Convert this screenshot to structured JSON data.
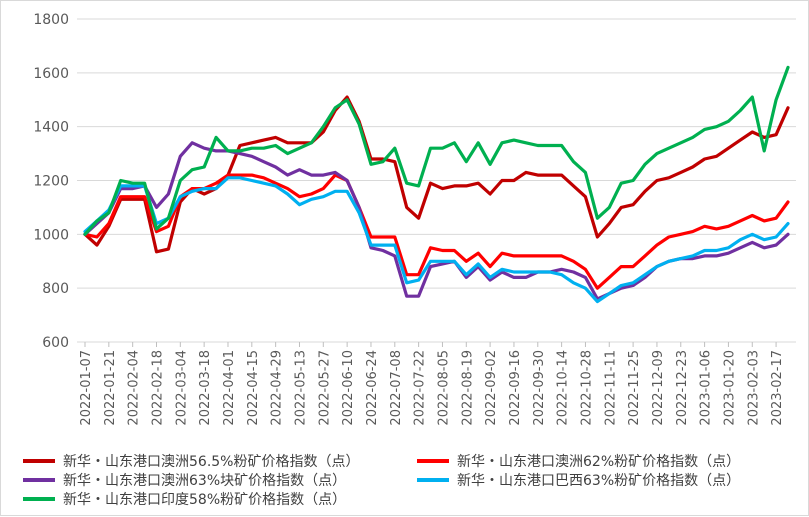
{
  "chart_data": {
    "type": "line",
    "title": "",
    "xlabel": "",
    "ylabel": "",
    "ylim": [
      600,
      1800
    ],
    "yticks": [
      600,
      800,
      1000,
      1200,
      1400,
      1600,
      1800
    ],
    "grid": "horizontal",
    "legend_position": "bottom",
    "x_tick_labels": [
      "2022-01-07",
      "2022-01-21",
      "2022-02-04",
      "2022-02-18",
      "2022-03-04",
      "2022-03-18",
      "2022-04-01",
      "2022-04-15",
      "2022-04-29",
      "2022-05-13",
      "2022-05-27",
      "2022-06-10",
      "2022-06-24",
      "2022-07-08",
      "2022-07-22",
      "2022-08-05",
      "2022-08-19",
      "2022-09-02",
      "2022-09-16",
      "2022-09-30",
      "2022-10-14",
      "2022-10-28",
      "2022-11-11",
      "2022-11-25",
      "2022-12-09",
      "2022-12-23",
      "2023-01-06",
      "2023-01-20",
      "2023-02-03",
      "2023-02-17"
    ],
    "x": [
      "2022-01-07",
      "2022-01-14",
      "2022-01-21",
      "2022-01-28",
      "2022-02-04",
      "2022-02-11",
      "2022-02-18",
      "2022-02-25",
      "2022-03-04",
      "2022-03-11",
      "2022-03-18",
      "2022-03-25",
      "2022-04-01",
      "2022-04-08",
      "2022-04-15",
      "2022-04-22",
      "2022-04-29",
      "2022-05-06",
      "2022-05-13",
      "2022-05-20",
      "2022-05-27",
      "2022-06-03",
      "2022-06-10",
      "2022-06-17",
      "2022-06-24",
      "2022-07-01",
      "2022-07-08",
      "2022-07-15",
      "2022-07-22",
      "2022-07-29",
      "2022-08-05",
      "2022-08-12",
      "2022-08-19",
      "2022-08-26",
      "2022-09-02",
      "2022-09-09",
      "2022-09-16",
      "2022-09-23",
      "2022-09-30",
      "2022-10-07",
      "2022-10-14",
      "2022-10-21",
      "2022-10-28",
      "2022-11-04",
      "2022-11-11",
      "2022-11-18",
      "2022-11-25",
      "2022-12-02",
      "2022-12-09",
      "2022-12-16",
      "2022-12-23",
      "2022-12-30",
      "2023-01-06",
      "2023-01-13",
      "2023-01-20",
      "2023-01-27",
      "2023-02-03",
      "2023-02-10",
      "2023-02-17",
      "2023-02-24"
    ],
    "series": [
      {
        "name": "新华・山东港口澳洲56.5%粉矿价格指数（点）",
        "color": "#c00000",
        "values": [
          1000,
          960,
          1030,
          1130,
          1130,
          1130,
          935,
          945,
          1120,
          1170,
          1150,
          1170,
          1220,
          1330,
          1340,
          1350,
          1360,
          1340,
          1340,
          1340,
          1380,
          1460,
          1510,
          1420,
          1280,
          1280,
          1270,
          1100,
          1060,
          1190,
          1170,
          1180,
          1180,
          1190,
          1150,
          1200,
          1200,
          1230,
          1220,
          1220,
          1220,
          1180,
          1140,
          990,
          1040,
          1100,
          1110,
          1160,
          1200,
          1210,
          1230,
          1250,
          1280,
          1290,
          1320,
          1350,
          1380,
          1360,
          1370,
          1470
        ]
      },
      {
        "name": "新华・山东港口澳洲62%粉矿价格指数（点）",
        "color": "#ff0000",
        "values": [
          1000,
          990,
          1040,
          1140,
          1140,
          1140,
          1010,
          1030,
          1140,
          1170,
          1170,
          1190,
          1220,
          1220,
          1220,
          1210,
          1190,
          1170,
          1140,
          1150,
          1170,
          1220,
          1200,
          1100,
          990,
          990,
          990,
          850,
          850,
          950,
          940,
          940,
          900,
          930,
          880,
          930,
          920,
          920,
          920,
          920,
          920,
          900,
          870,
          800,
          840,
          880,
          880,
          920,
          960,
          990,
          1000,
          1010,
          1030,
          1020,
          1030,
          1050,
          1070,
          1050,
          1060,
          1120
        ]
      },
      {
        "name": "新华・山东港口澳洲63%块矿价格指数（点）",
        "color": "#7030a0",
        "values": [
          1000,
          1040,
          1080,
          1170,
          1170,
          1180,
          1100,
          1150,
          1290,
          1340,
          1320,
          1310,
          1310,
          1300,
          1290,
          1270,
          1250,
          1220,
          1240,
          1220,
          1220,
          1230,
          1200,
          1100,
          950,
          940,
          920,
          770,
          770,
          880,
          890,
          900,
          840,
          880,
          830,
          860,
          840,
          840,
          860,
          860,
          870,
          860,
          840,
          760,
          780,
          800,
          810,
          840,
          880,
          900,
          910,
          910,
          920,
          920,
          930,
          950,
          970,
          950,
          960,
          1000
        ]
      },
      {
        "name": "新华・山东港口巴西63%粉矿价格指数（点）",
        "color": "#00b0f0",
        "values": [
          1010,
          1050,
          1090,
          1180,
          1180,
          1180,
          1040,
          1060,
          1140,
          1160,
          1170,
          1170,
          1210,
          1210,
          1200,
          1190,
          1180,
          1150,
          1110,
          1130,
          1140,
          1160,
          1160,
          1080,
          960,
          960,
          960,
          820,
          830,
          900,
          900,
          900,
          850,
          890,
          840,
          870,
          860,
          860,
          860,
          860,
          850,
          820,
          800,
          750,
          780,
          810,
          820,
          850,
          880,
          900,
          910,
          920,
          940,
          940,
          950,
          980,
          1000,
          980,
          990,
          1040
        ]
      },
      {
        "name": "新华・山东港口印度58%粉矿价格指数（点）",
        "color": "#00b050",
        "values": [
          1000,
          1050,
          1080,
          1200,
          1190,
          1190,
          1020,
          1060,
          1200,
          1240,
          1250,
          1360,
          1310,
          1310,
          1320,
          1320,
          1330,
          1300,
          1320,
          1340,
          1400,
          1470,
          1500,
          1410,
          1260,
          1270,
          1320,
          1190,
          1180,
          1320,
          1320,
          1340,
          1270,
          1340,
          1260,
          1340,
          1350,
          1340,
          1330,
          1330,
          1330,
          1270,
          1230,
          1060,
          1100,
          1190,
          1200,
          1260,
          1300,
          1320,
          1340,
          1360,
          1390,
          1400,
          1420,
          1460,
          1510,
          1310,
          1500,
          1620
        ]
      }
    ]
  }
}
